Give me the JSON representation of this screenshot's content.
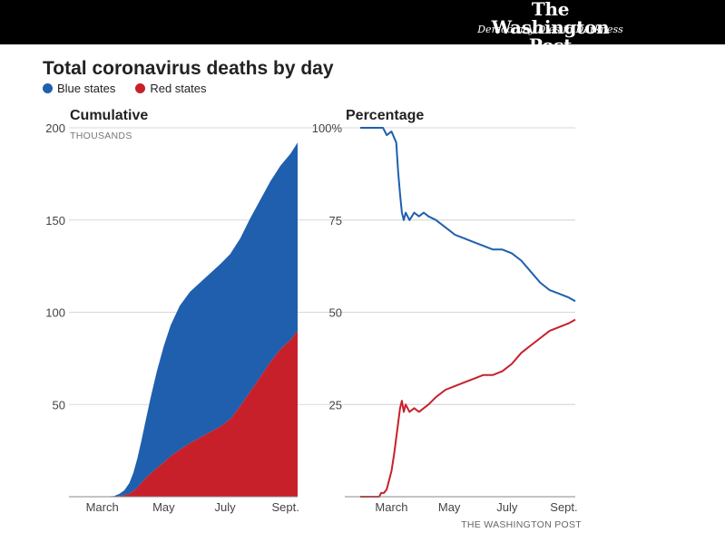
{
  "masthead": {
    "brand": "The Washington Post",
    "tagline": "Democracy Dies in Darkness"
  },
  "chart_data": {
    "title": "Total coronavirus deaths by day",
    "legend": [
      {
        "label": "Blue states",
        "color": "#1f5fae"
      },
      {
        "label": "Red states",
        "color": "#c8202a"
      }
    ],
    "source": "THE WASHINGTON POST",
    "x_domain": [
      "Feb. 1",
      "Sept. 15"
    ],
    "panels": [
      {
        "type": "area",
        "subtitle": "Cumulative",
        "unit": "THOUSANDS",
        "ylim": [
          0,
          200
        ],
        "y_ticks": [
          {
            "v": 50,
            "label": "50"
          },
          {
            "v": 100,
            "label": "100"
          },
          {
            "v": 150,
            "label": "150"
          },
          {
            "v": 200,
            "label": "200"
          }
        ],
        "x_ticks": [
          {
            "day": 33,
            "label": "March"
          },
          {
            "day": 94,
            "label": "May"
          },
          {
            "day": 155,
            "label": "July"
          },
          {
            "day": 215,
            "label": "Sept."
          }
        ],
        "days": [
          0,
          30,
          45,
          50,
          55,
          60,
          64,
          68,
          72,
          76,
          81,
          87,
          94,
          101,
          110,
          120,
          130,
          140,
          150,
          160,
          170,
          180,
          190,
          200,
          210,
          220,
          227
        ],
        "series": [
          {
            "name": "Blue states",
            "values": [
              0,
              0,
              0.3,
              1.2,
              2.7,
              5.7,
              10,
              16,
              23,
              31,
              41,
              52,
              63,
              71,
              78,
              82,
              84,
              86,
              88,
              89.5,
              91,
              94,
              96,
              98,
              99.5,
              101,
              102
            ]
          },
          {
            "name": "Red states",
            "values": [
              0,
              0,
              0.1,
              0.3,
              0.8,
              1.7,
              3,
              5,
              7.5,
              10,
              12.5,
              15.5,
              18.5,
              22,
              25.5,
              29,
              32,
              35,
              38,
              42,
              49,
              57,
              65,
              73,
              80,
              85,
              90
            ]
          }
        ]
      },
      {
        "type": "line",
        "subtitle": "Percentage",
        "unit": "",
        "ylim": [
          0,
          100
        ],
        "y_ticks": [
          {
            "v": 25,
            "label": "25"
          },
          {
            "v": 50,
            "label": "50"
          },
          {
            "v": 75,
            "label": "75"
          },
          {
            "v": 100,
            "label": "100%"
          }
        ],
        "x_ticks": [
          {
            "day": 33,
            "label": "March"
          },
          {
            "day": 94,
            "label": "May"
          },
          {
            "day": 155,
            "label": "July"
          },
          {
            "day": 215,
            "label": "Sept."
          }
        ],
        "series": [
          {
            "name": "Blue states",
            "days": [
              0,
              9,
              15,
              20,
              24,
              28,
              33,
              38,
              40,
              42,
              44,
              46,
              48,
              52,
              57,
              62,
              67,
              72,
              80,
              90,
              100,
              110,
              120,
              130,
              140,
              150,
              160,
              170,
              180,
              190,
              200,
              210,
              220,
              227
            ],
            "values": [
              100,
              100,
              100,
              100,
              100,
              98,
              99,
              96,
              88,
              82,
              77,
              75,
              77,
              75,
              77,
              76,
              77,
              76,
              75,
              73,
              71,
              70,
              69,
              68,
              67,
              67,
              66,
              64,
              61,
              58,
              56,
              55,
              54,
              53
            ]
          },
          {
            "name": "Red states",
            "days": [
              0,
              14,
              15,
              20,
              22,
              25,
              28,
              30,
              33,
              36,
              38,
              40,
              42,
              44,
              46,
              48,
              52,
              57,
              62,
              67,
              72,
              80,
              90,
              100,
              110,
              120,
              130,
              140,
              150,
              160,
              170,
              180,
              190,
              200,
              210,
              220,
              227
            ],
            "values": [
              0,
              0,
              0,
              0,
              1,
              1,
              2,
              4,
              7,
              12,
              16,
              20,
              24,
              26,
              23,
              25,
              23,
              24,
              23,
              24,
              25,
              27,
              29,
              30,
              31,
              32,
              33,
              33,
              34,
              36,
              39,
              41,
              43,
              45,
              46,
              47,
              48
            ]
          }
        ]
      }
    ]
  }
}
